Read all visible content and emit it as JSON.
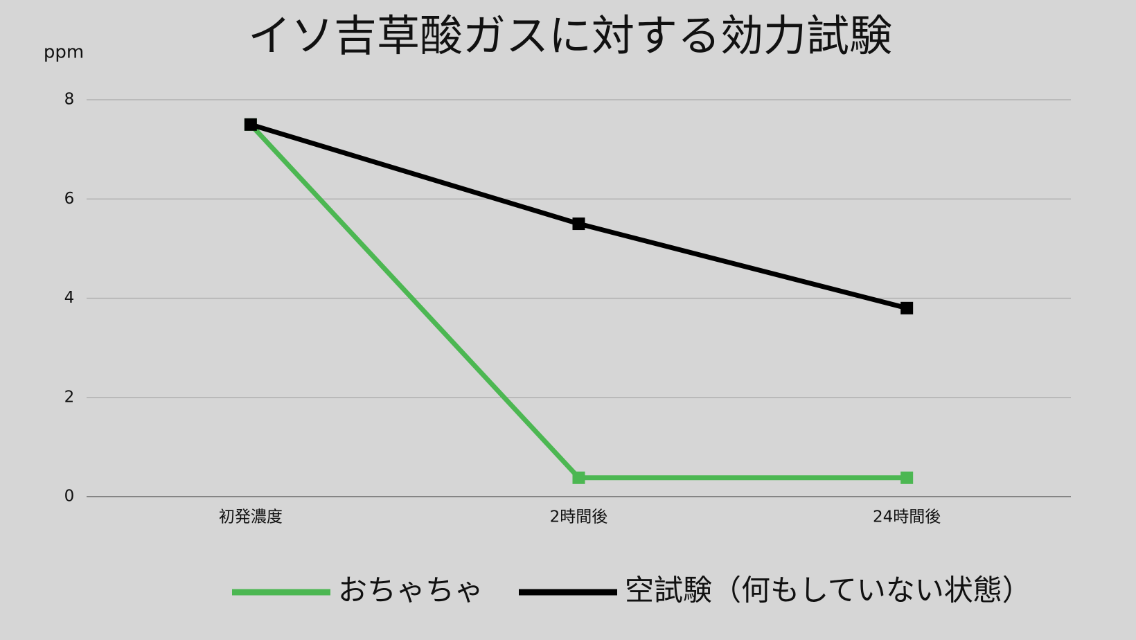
{
  "chart_data": {
    "type": "line",
    "title": "イソ吉草酸ガスに対する効力試験",
    "y_label": "ppm",
    "categories": [
      "初発濃度",
      "2時間後",
      "24時間後"
    ],
    "series": [
      {
        "name": "おちゃちゃ",
        "color": "#4cb752",
        "values": [
          7.5,
          0.38,
          0.38
        ]
      },
      {
        "name": "空試験（何もしていない状態）",
        "color": "#000000",
        "values": [
          7.5,
          5.5,
          3.8
        ]
      }
    ],
    "ylim": [
      0,
      8
    ],
    "yticks": [
      0,
      2,
      4,
      6,
      8
    ],
    "grid": true,
    "legend": "bottom"
  }
}
